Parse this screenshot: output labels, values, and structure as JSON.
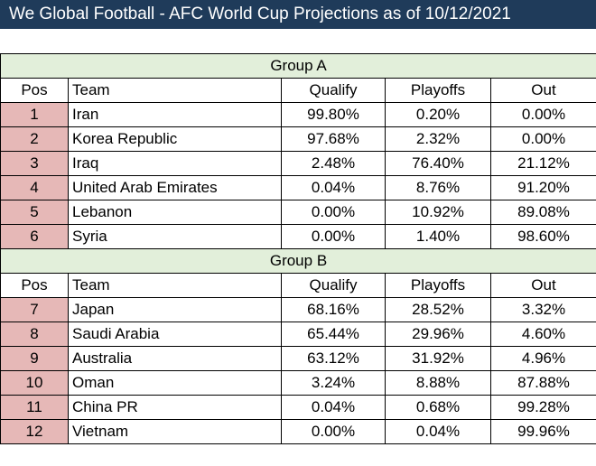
{
  "title": "We Global Football - AFC World Cup Projections as of 10/12/2021",
  "headers": {
    "pos": "Pos",
    "team": "Team",
    "qualify": "Qualify",
    "playoffs": "Playoffs",
    "out": "Out"
  },
  "groups": [
    {
      "name": "Group A",
      "rows": [
        {
          "pos": "1",
          "team": "Iran",
          "qualify": "99.80%",
          "playoffs": "0.20%",
          "out": "0.00%"
        },
        {
          "pos": "2",
          "team": "Korea Republic",
          "qualify": "97.68%",
          "playoffs": "2.32%",
          "out": "0.00%"
        },
        {
          "pos": "3",
          "team": "Iraq",
          "qualify": "2.48%",
          "playoffs": "76.40%",
          "out": "21.12%"
        },
        {
          "pos": "4",
          "team": "United Arab Emirates",
          "qualify": "0.04%",
          "playoffs": "8.76%",
          "out": "91.20%"
        },
        {
          "pos": "5",
          "team": "Lebanon",
          "qualify": "0.00%",
          "playoffs": "10.92%",
          "out": "89.08%"
        },
        {
          "pos": "6",
          "team": "Syria",
          "qualify": "0.00%",
          "playoffs": "1.40%",
          "out": "98.60%"
        }
      ]
    },
    {
      "name": "Group B",
      "rows": [
        {
          "pos": "7",
          "team": "Japan",
          "qualify": "68.16%",
          "playoffs": "28.52%",
          "out": "3.32%"
        },
        {
          "pos": "8",
          "team": "Saudi Arabia",
          "qualify": "65.44%",
          "playoffs": "29.96%",
          "out": "4.60%"
        },
        {
          "pos": "9",
          "team": "Australia",
          "qualify": "63.12%",
          "playoffs": "31.92%",
          "out": "4.96%"
        },
        {
          "pos": "10",
          "team": "Oman",
          "qualify": "3.24%",
          "playoffs": "8.88%",
          "out": "87.88%"
        },
        {
          "pos": "11",
          "team": "China PR",
          "qualify": "0.04%",
          "playoffs": "0.68%",
          "out": "99.28%"
        },
        {
          "pos": "12",
          "team": "Vietnam",
          "qualify": "0.00%",
          "playoffs": "0.04%",
          "out": "99.96%"
        }
      ]
    }
  ],
  "colors": {
    "title_bg": "#1f3b5a",
    "group_bg": "#e2efda",
    "pos_bg": "#e6b8b7"
  }
}
